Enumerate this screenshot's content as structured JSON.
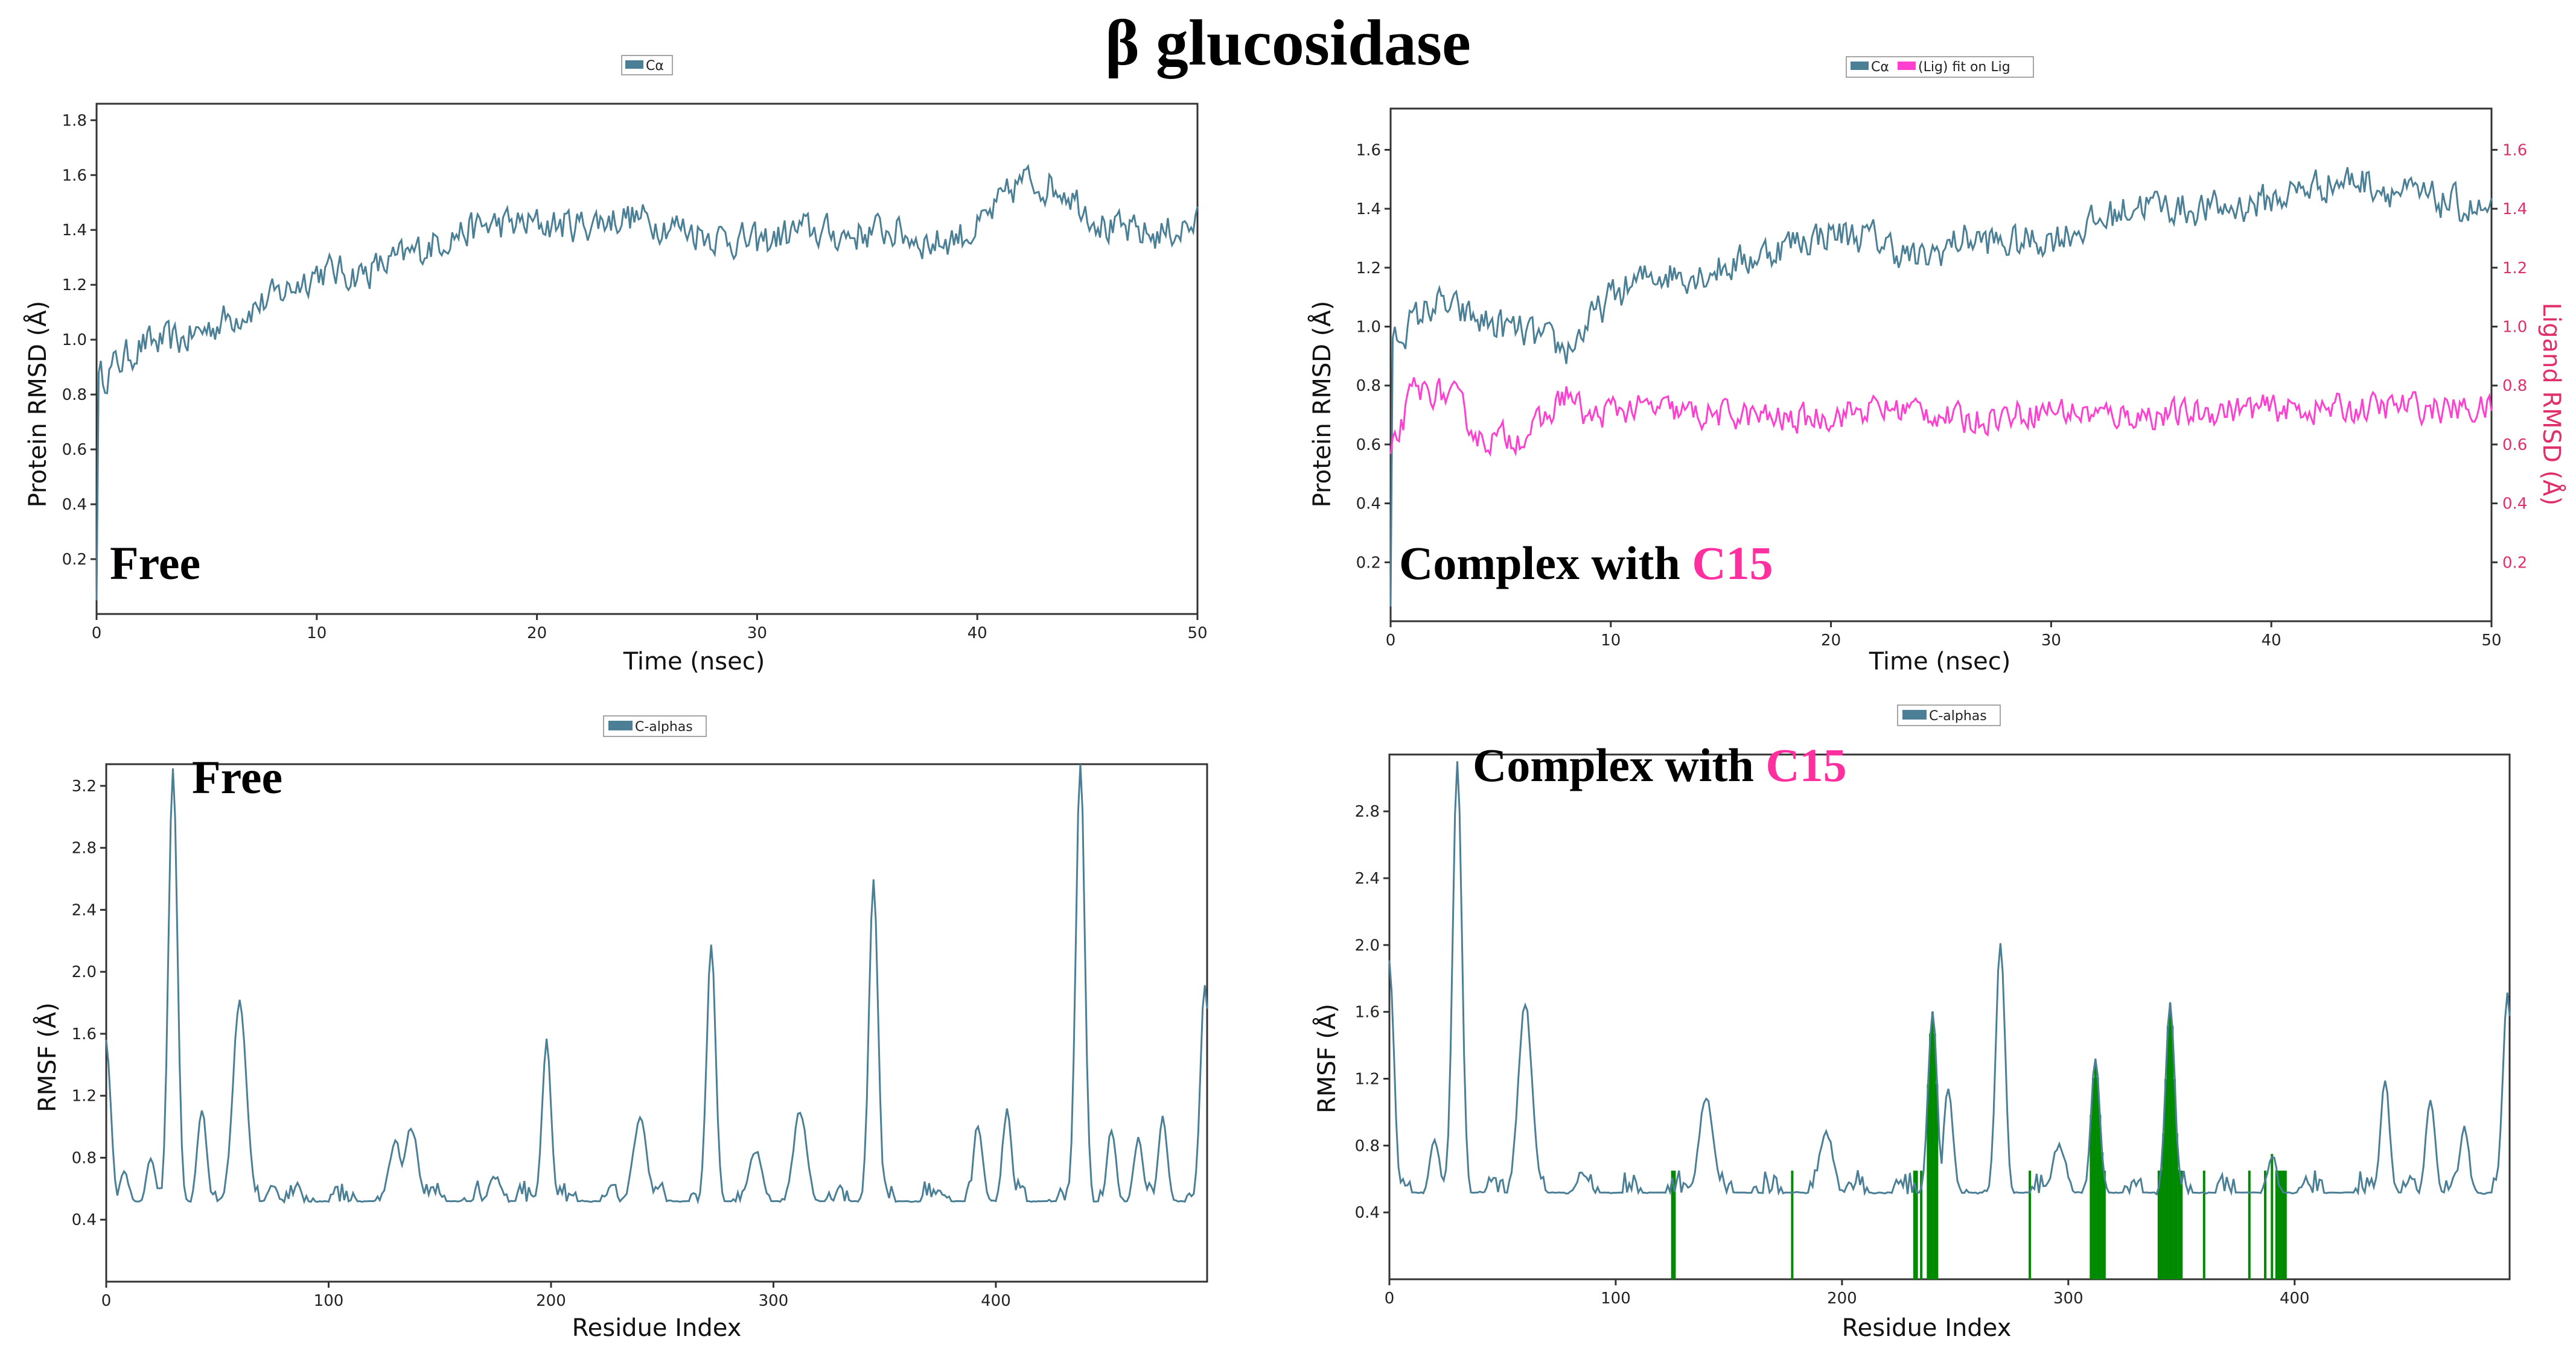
{
  "title": "β glucosidase",
  "colors": {
    "protein": "#4a7f96",
    "ligand": "#ff3fd0",
    "contact": "#008a00",
    "right_axis": "#e0306a"
  },
  "chart_data": [
    {
      "id": "rmsd_free",
      "type": "line",
      "legend": [
        "Cα"
      ],
      "legend_position": "top-center",
      "annotation": "Free",
      "xlabel": "Time (nsec)",
      "ylabel": "Protein RMSD (Å)",
      "xlim": [
        0,
        50
      ],
      "ylim": [
        0,
        1.86
      ],
      "xticks": [
        0,
        10,
        20,
        30,
        40,
        50
      ],
      "yticks": [
        0.2,
        0.4,
        0.6,
        0.8,
        1.0,
        1.2,
        1.4,
        1.6,
        1.8
      ],
      "series": [
        {
          "name": "Cα",
          "color": "protein",
          "x": [
            0,
            2,
            4,
            6,
            8,
            10,
            12,
            14,
            16,
            18,
            20,
            22,
            24,
            26,
            28,
            30,
            32,
            34,
            36,
            38,
            40,
            42,
            44,
            46,
            48,
            50
          ],
          "values": [
            0.85,
            0.98,
            1.0,
            1.08,
            1.15,
            1.25,
            1.24,
            1.3,
            1.38,
            1.42,
            1.42,
            1.42,
            1.45,
            1.42,
            1.38,
            1.35,
            1.4,
            1.38,
            1.4,
            1.35,
            1.4,
            1.58,
            1.55,
            1.4,
            1.38,
            1.42
          ],
          "noise": 0.065
        }
      ]
    },
    {
      "id": "rmsd_complex",
      "type": "line",
      "legend": [
        "Cα",
        "(Lig) fit on Lig"
      ],
      "legend_position": "top-center",
      "annotation": "Complex with",
      "annotation_highlight": "C15",
      "xlabel": "Time (nsec)",
      "ylabel": "Protein RMSD (Å)",
      "ylabel_right": "Ligand RMSD (Å)",
      "xlim": [
        0,
        50
      ],
      "ylim": [
        0,
        1.74
      ],
      "xticks": [
        0,
        10,
        20,
        30,
        40,
        50
      ],
      "yticks": [
        0.2,
        0.4,
        0.6,
        0.8,
        1.0,
        1.2,
        1.4,
        1.6
      ],
      "yticks_right": [
        0.2,
        0.4,
        0.6,
        0.8,
        1.0,
        1.2,
        1.4,
        1.6
      ],
      "series": [
        {
          "name": "Cα",
          "color": "protein",
          "x": [
            0,
            2,
            4,
            6,
            8,
            10,
            12,
            14,
            16,
            18,
            20,
            22,
            24,
            26,
            28,
            30,
            32,
            34,
            36,
            38,
            40,
            42,
            44,
            46,
            48,
            50
          ],
          "values": [
            0.95,
            1.08,
            1.02,
            0.98,
            0.92,
            1.1,
            1.18,
            1.18,
            1.22,
            1.28,
            1.32,
            1.3,
            1.22,
            1.3,
            1.28,
            1.3,
            1.35,
            1.42,
            1.4,
            1.4,
            1.43,
            1.48,
            1.5,
            1.45,
            1.42,
            1.38
          ],
          "noise": 0.06
        },
        {
          "name": "(Lig) fit on Lig",
          "color": "ligand",
          "x": [
            0,
            1,
            2,
            3,
            4,
            5,
            6,
            7,
            8,
            9,
            10,
            12,
            14,
            16,
            18,
            20,
            22,
            24,
            26,
            28,
            30,
            32,
            34,
            36,
            38,
            40,
            42,
            44,
            46,
            48,
            50
          ],
          "values": [
            0.55,
            0.78,
            0.78,
            0.75,
            0.62,
            0.62,
            0.63,
            0.68,
            0.78,
            0.68,
            0.72,
            0.72,
            0.7,
            0.7,
            0.68,
            0.7,
            0.72,
            0.72,
            0.68,
            0.7,
            0.72,
            0.7,
            0.7,
            0.7,
            0.72,
            0.72,
            0.72,
            0.72,
            0.73,
            0.72,
            0.72
          ],
          "noise": 0.05
        }
      ]
    },
    {
      "id": "rmsf_free",
      "type": "line",
      "legend": [
        "C-alphas"
      ],
      "legend_position": "top-center",
      "annotation": "Free",
      "xlabel": "Residue Index",
      "ylabel": "RMSF (Å)",
      "xlim": [
        0,
        495
      ],
      "ylim": [
        0,
        3.34
      ],
      "xticks": [
        0,
        100,
        200,
        300,
        400
      ],
      "yticks": [
        0.4,
        0.8,
        1.2,
        1.6,
        2.0,
        2.4,
        2.8,
        3.2
      ],
      "baseline": 0.5,
      "peaks": [
        [
          0,
          1.55,
          2
        ],
        [
          8,
          0.72,
          2
        ],
        [
          20,
          0.78,
          2
        ],
        [
          30,
          3.3,
          2
        ],
        [
          43,
          1.12,
          2
        ],
        [
          60,
          1.8,
          3
        ],
        [
          75,
          0.62,
          2
        ],
        [
          130,
          0.9,
          3
        ],
        [
          137,
          1.0,
          3
        ],
        [
          175,
          0.68,
          3
        ],
        [
          198,
          1.55,
          2
        ],
        [
          240,
          1.05,
          3
        ],
        [
          272,
          2.18,
          2
        ],
        [
          292,
          0.85,
          3
        ],
        [
          312,
          1.1,
          3
        ],
        [
          345,
          2.6,
          2
        ],
        [
          375,
          0.58,
          3
        ],
        [
          392,
          1.02,
          2
        ],
        [
          405,
          1.1,
          2
        ],
        [
          438,
          3.36,
          2
        ],
        [
          452,
          0.98,
          2
        ],
        [
          464,
          0.92,
          2
        ],
        [
          475,
          1.05,
          2
        ],
        [
          494,
          1.92,
          2
        ]
      ],
      "series": [
        {
          "name": "C-alphas",
          "color": "protein"
        }
      ]
    },
    {
      "id": "rmsf_complex",
      "type": "line",
      "legend": [
        "C-alphas"
      ],
      "legend_position": "top-center",
      "annotation": "Complex with",
      "annotation_highlight": "C15",
      "xlabel": "Residue Index",
      "ylabel": "RMSF (Å)",
      "xlim": [
        0,
        495
      ],
      "ylim": [
        0,
        3.14
      ],
      "xticks": [
        0,
        100,
        200,
        300,
        400
      ],
      "yticks": [
        0.4,
        0.8,
        1.2,
        1.6,
        2.0,
        2.4,
        2.8
      ],
      "baseline": 0.5,
      "peaks": [
        [
          0,
          1.9,
          2
        ],
        [
          20,
          0.85,
          2
        ],
        [
          30,
          3.1,
          2
        ],
        [
          60,
          1.65,
          3
        ],
        [
          85,
          0.65,
          2
        ],
        [
          140,
          1.1,
          3
        ],
        [
          193,
          0.88,
          3
        ],
        [
          240,
          1.6,
          2
        ],
        [
          247,
          1.15,
          2
        ],
        [
          270,
          2.02,
          2
        ],
        [
          296,
          0.8,
          3
        ],
        [
          312,
          1.3,
          2
        ],
        [
          345,
          1.65,
          2
        ],
        [
          390,
          0.75,
          2
        ],
        [
          405,
          0.6,
          2
        ],
        [
          440,
          1.18,
          2
        ],
        [
          460,
          1.08,
          2
        ],
        [
          475,
          0.92,
          2
        ],
        [
          494,
          1.7,
          2
        ]
      ],
      "contacts": [
        125,
        126,
        178,
        232,
        233,
        235,
        238,
        239,
        240,
        241,
        242,
        283,
        310,
        311,
        312,
        313,
        314,
        315,
        316,
        340,
        341,
        342,
        343,
        344,
        345,
        346,
        347,
        348,
        349,
        350,
        360,
        380,
        387,
        390,
        392,
        393,
        394,
        395,
        396
      ],
      "series": [
        {
          "name": "C-alphas",
          "color": "protein"
        },
        {
          "name": "ligand contacts",
          "color": "contact"
        }
      ]
    }
  ]
}
